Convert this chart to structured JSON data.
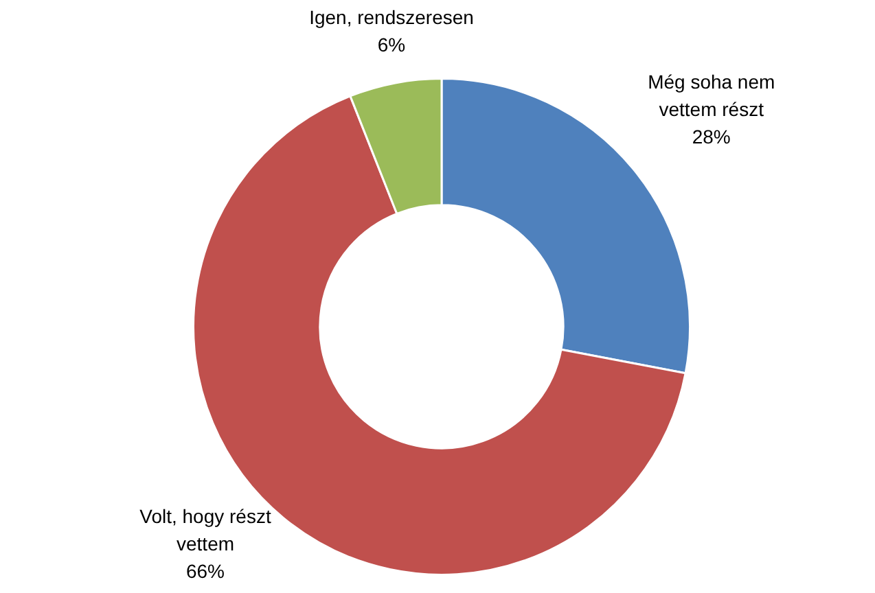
{
  "chart_data": {
    "type": "donut",
    "categories": [
      "Még soha nem vettem részt",
      "Volt, hogy részt vettem",
      "Igen, rendszeresen"
    ],
    "values": [
      28,
      66,
      6
    ],
    "value_labels": [
      "28%",
      "66%",
      "6%"
    ],
    "colors": [
      "#4f81bd",
      "#c0504d",
      "#9bbb59"
    ],
    "legend": false
  }
}
